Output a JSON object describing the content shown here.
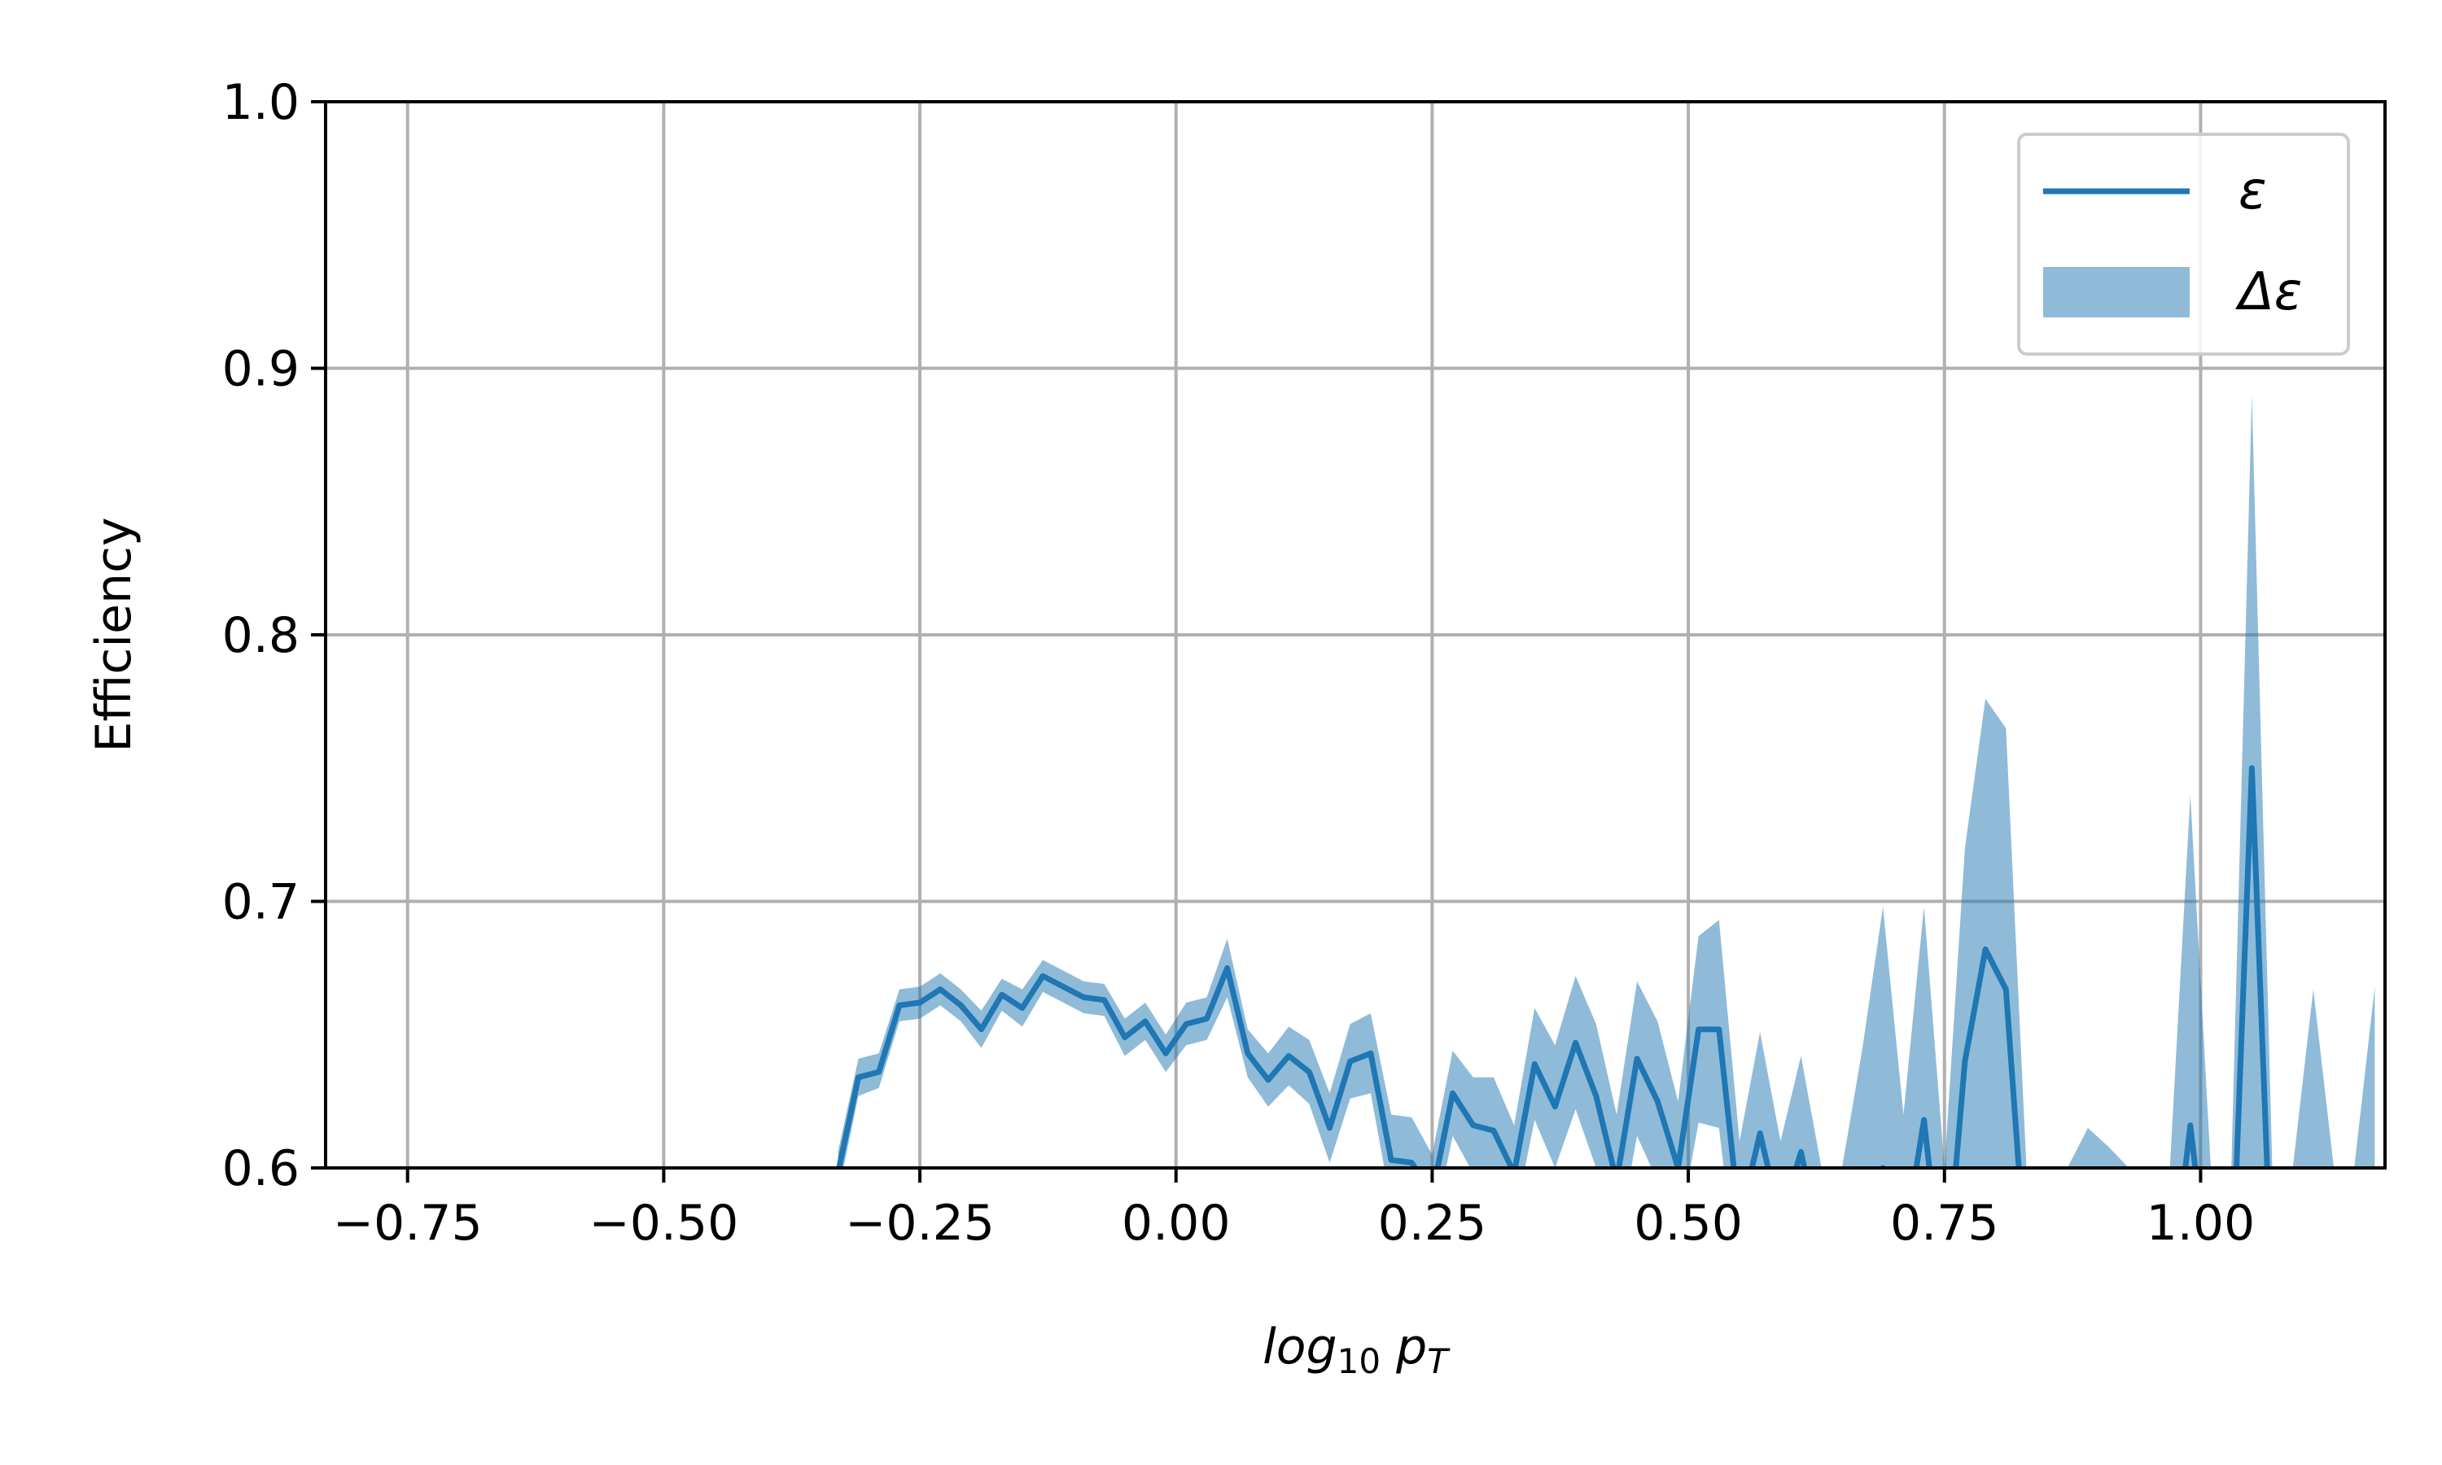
{
  "colors": {
    "line": "#1f77b4",
    "band": "#1f77b4",
    "grid": "#b0b0b0",
    "axis": "#000000"
  },
  "chart_data": {
    "type": "line",
    "title": "",
    "xlabel": {
      "base": "log",
      "sub": "10",
      "var": "p",
      "var_sub": "T"
    },
    "ylabel": "Efficiency",
    "xlim": [
      -0.83,
      1.18
    ],
    "ylim": [
      0.6,
      1.0
    ],
    "grid": true,
    "legend_position": "top-right",
    "x_ticks": [
      -0.75,
      -0.5,
      -0.25,
      0.0,
      0.25,
      0.5,
      0.75,
      1.0
    ],
    "x_tick_labels": [
      "−0.75",
      "−0.50",
      "−0.25",
      "0.00",
      "0.25",
      "0.50",
      "0.75",
      "1.00"
    ],
    "y_ticks": [
      0.6,
      0.7,
      0.8,
      0.9,
      1.0
    ],
    "y_tick_labels": [
      "0.6",
      "0.7",
      "0.8",
      "0.9",
      "1.0"
    ],
    "series": [
      {
        "name": "ε",
        "kind": "line",
        "ref": "main"
      },
      {
        "name": "Δε",
        "kind": "band",
        "ref": "main"
      }
    ],
    "main": {
      "x": [
        -0.33,
        -0.31,
        -0.29,
        -0.27,
        -0.25,
        -0.23,
        -0.21,
        -0.19,
        -0.17,
        -0.15,
        -0.13,
        -0.11,
        -0.09,
        -0.07,
        -0.05,
        -0.03,
        -0.01,
        0.01,
        0.03,
        0.05,
        0.07,
        0.09,
        0.11,
        0.13,
        0.15,
        0.17,
        0.19,
        0.21,
        0.23,
        0.25,
        0.27,
        0.29,
        0.31,
        0.33,
        0.35,
        0.37,
        0.39,
        0.41,
        0.43,
        0.45,
        0.47,
        0.49,
        0.51,
        0.53,
        0.55,
        0.57,
        0.59,
        0.61,
        0.63,
        0.65,
        0.67,
        0.69,
        0.71,
        0.73,
        0.75,
        0.77,
        0.79,
        0.81,
        0.83,
        0.85,
        0.87,
        0.89,
        0.91,
        0.93,
        0.95,
        0.97,
        0.99,
        1.01,
        1.03,
        1.05,
        1.07,
        1.09,
        1.11,
        1.13,
        1.15,
        1.17
      ],
      "y": [
        0.598,
        0.634,
        0.636,
        0.661,
        0.662,
        0.667,
        0.661,
        0.652,
        0.665,
        0.66,
        0.672,
        0.668,
        0.664,
        0.663,
        0.649,
        0.655,
        0.643,
        0.654,
        0.656,
        0.675,
        0.643,
        0.633,
        0.642,
        0.636,
        0.615,
        0.64,
        0.643,
        0.603,
        0.602,
        0.59,
        0.628,
        0.616,
        0.614,
        0.598,
        0.639,
        0.623,
        0.647,
        0.627,
        0.595,
        0.641,
        0.625,
        0.6,
        0.652,
        0.652,
        0.58,
        0.613,
        0.58,
        0.606,
        0.57,
        0.57,
        0.58,
        0.6,
        0.57,
        0.618,
        0.55,
        0.64,
        0.682,
        0.667,
        0.56,
        0.55,
        0.55,
        0.55,
        0.56,
        0.56,
        0.55,
        0.55,
        0.616,
        0.55,
        0.55,
        0.75,
        0.55,
        0.55,
        0.55,
        0.55,
        0.55,
        0.55
      ],
      "lower": [
        0.59,
        0.627,
        0.63,
        0.655,
        0.656,
        0.661,
        0.655,
        0.645,
        0.659,
        0.653,
        0.666,
        0.662,
        0.658,
        0.657,
        0.642,
        0.648,
        0.636,
        0.646,
        0.648,
        0.664,
        0.634,
        0.623,
        0.631,
        0.624,
        0.602,
        0.626,
        0.628,
        0.586,
        0.585,
        0.575,
        0.612,
        0.598,
        0.594,
        0.58,
        0.618,
        0.6,
        0.622,
        0.6,
        0.57,
        0.612,
        0.595,
        0.575,
        0.617,
        0.615,
        0.55,
        0.575,
        0.55,
        0.57,
        0.54,
        0.54,
        0.55,
        0.55,
        0.52,
        0.55,
        0.5,
        0.56,
        0.59,
        0.57,
        0.5,
        0.5,
        0.5,
        0.5,
        0.5,
        0.5,
        0.5,
        0.5,
        0.55,
        0.5,
        0.5,
        0.6,
        0.5,
        0.5,
        0.5,
        0.5,
        0.5,
        0.5
      ],
      "upper": [
        0.606,
        0.641,
        0.643,
        0.667,
        0.668,
        0.673,
        0.667,
        0.659,
        0.671,
        0.667,
        0.678,
        0.674,
        0.67,
        0.669,
        0.656,
        0.662,
        0.65,
        0.662,
        0.664,
        0.686,
        0.652,
        0.643,
        0.653,
        0.648,
        0.628,
        0.654,
        0.658,
        0.62,
        0.619,
        0.605,
        0.644,
        0.634,
        0.634,
        0.616,
        0.66,
        0.646,
        0.672,
        0.654,
        0.62,
        0.67,
        0.655,
        0.625,
        0.687,
        0.693,
        0.61,
        0.651,
        0.61,
        0.642,
        0.6,
        0.6,
        0.645,
        0.698,
        0.62,
        0.698,
        0.6,
        0.72,
        0.776,
        0.765,
        0.6,
        0.6,
        0.6,
        0.615,
        0.608,
        0.6,
        0.6,
        0.6,
        0.74,
        0.6,
        0.6,
        0.89,
        0.6,
        0.6,
        0.667,
        0.6,
        0.6,
        0.668
      ]
    }
  }
}
